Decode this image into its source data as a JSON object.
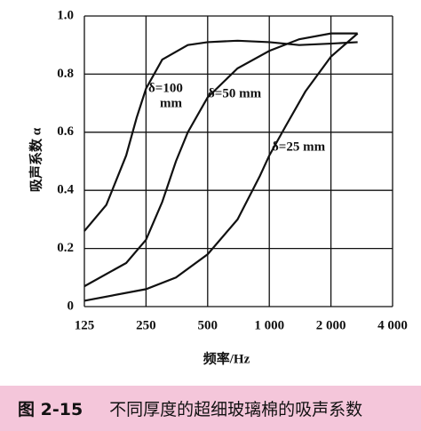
{
  "chart_data": {
    "type": "line",
    "xlabel": "频率/Hz",
    "ylabel": "吸声系数 α",
    "xscale": "log",
    "grid": true,
    "color": "#111111",
    "xlim": [
      125,
      4000
    ],
    "xticks": [
      125,
      250,
      500,
      {
        "value": 1000,
        "label": "1 000"
      },
      {
        "value": 2000,
        "label": "2 000"
      },
      {
        "value": 4000,
        "label": "4 000"
      }
    ],
    "ylim": [
      0,
      1
    ],
    "yticks": [
      0,
      0.2,
      0.4,
      0.6,
      0.8,
      {
        "value": 1,
        "label": "1.0"
      }
    ],
    "series": [
      {
        "x": [
          125,
          160,
          200,
          225,
          250,
          300,
          400,
          500,
          700,
          1000,
          1400,
          2000,
          2700
        ],
        "values": [
          0.26,
          0.35,
          0.52,
          0.65,
          0.75,
          0.85,
          0.9,
          0.91,
          0.915,
          0.91,
          0.9,
          0.905,
          0.91
        ]
      },
      {
        "x": [
          125,
          200,
          250,
          300,
          350,
          400,
          500,
          700,
          1000,
          1400,
          2000,
          2700
        ],
        "values": [
          0.07,
          0.15,
          0.23,
          0.36,
          0.5,
          0.6,
          0.72,
          0.82,
          0.88,
          0.92,
          0.94,
          0.94
        ]
      },
      {
        "x": [
          125,
          250,
          350,
          500,
          700,
          900,
          1000,
          1200,
          1500,
          2000,
          2700
        ],
        "values": [
          0.02,
          0.06,
          0.1,
          0.18,
          0.3,
          0.45,
          0.52,
          0.62,
          0.74,
          0.86,
          0.94
        ]
      }
    ],
    "annotations": [
      "δ=100",
      "mm",
      "δ=50 mm",
      "δ=25 mm"
    ]
  },
  "caption": {
    "label": "图 2-15",
    "text": "不同厚度的超细玻璃棉的吸声系数"
  }
}
